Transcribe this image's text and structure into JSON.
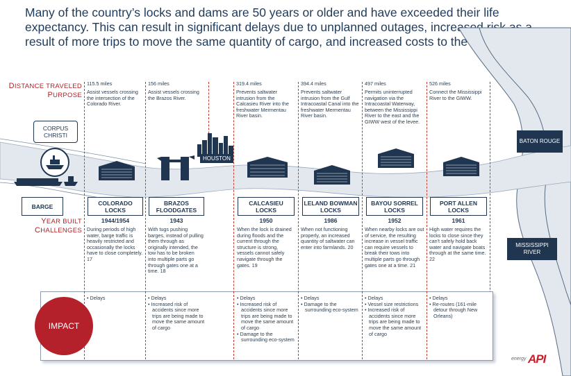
{
  "headline": "Many of the country’s locks and dams are 50 years or older and have exceeded their life expectancy. This can result in significant delays due to unplanned outages, increased risk as a result of more trips to move the same quantity of cargo, and increased costs to the end consumer.",
  "row_labels": {
    "distance_first": "D",
    "distance_rest": "ISTANCE TRAVELED",
    "purpose_first": "P",
    "purpose_rest": "URPOSE",
    "year_first": "Y",
    "year_rest": "EAR BUILT",
    "challenges_first": "C",
    "challenges_rest": "HALLENGES"
  },
  "cities": {
    "corpus_christi": "CORPUS CHRISTI",
    "houston": "HOUSTON",
    "baton_rouge": "BATON ROUGE",
    "mississippi_river": "MISSISSIPPI RIVER"
  },
  "barge_label": "BARGE",
  "impact_label": "IMPACT",
  "logo": {
    "prefix": "energy",
    "brand": "API",
    "color": "#c81e2b"
  },
  "colors": {
    "navy": "#1f3550",
    "red_label": "#b41e24",
    "impact_circle": "#b5212b",
    "water": "#e3e8ef"
  },
  "columns": [
    {
      "distance": "115.5 miles",
      "purpose": "Assist vessels crossing the intersection of the Colorado River.",
      "name": "COLORADO LOCKS",
      "year": "1944/1954",
      "challenge": "During periods of high water, barge traffic is heavily restricted and occasionally the locks have to close completely. 17",
      "impacts": [
        "• Delays"
      ]
    },
    {
      "distance": "156 miles",
      "purpose": "Assist vessels crossing the Brazos River.",
      "name": "BRAZOS FLOODGATES",
      "year": "1943",
      "challenge": "With tugs pushing barges, instead of pulling them through as originally intended, the tow has to be broken into multiple parts go through gates one at a time. 18",
      "impacts": [
        "• Delays",
        "• Increased risk of accidents since more trips are being made to move the same amount of cargo"
      ]
    },
    {
      "distance": "319.4 miles",
      "purpose": "Prevents saltwater intrusion from the Calcasieu River into the freshwater Mermentau River basin.",
      "name": "CALCASIEU LOCKS",
      "year": "1950",
      "challenge": "When the lock is drained during floods and the current through the structure is strong, vessels cannot safely navigate through the gates. 19",
      "impacts": [
        "• Delays",
        "• Increased risk of accidents since more trips are being made to move the same amount of cargo",
        "• Damage to the surrounding eco-system"
      ]
    },
    {
      "distance": "394.4 miles",
      "purpose": "Prevents saltwater intrusion from the Gulf Intracoastal Canal into the freshwater Mermentau River basin.",
      "name": "LELAND BOWMAN LOCKS",
      "year": "1986",
      "challenge": "When not functioning properly, an increased quantity of saltwater can enter into farmlands. 20",
      "impacts": [
        "• Delays",
        "• Damage to the surrounding eco-system"
      ]
    },
    {
      "distance": "497 miles",
      "purpose": "Permits uninterrupted navigation via the Intracoastal Waterway, between the Mississippi River to the east and the GIWW west of the levee.",
      "name": "BAYOU SORREL LOCKS",
      "year": "1952",
      "challenge": "When nearby locks are out of service, the resulting increase in vessel traffic can require vessels to break their tows into multiple parts go through gates one at a time. 21",
      "impacts": [
        "• Delays",
        "• Vessel size restrictions",
        "• Increased risk of accidents since more trips are being made to move the same amount of cargo"
      ]
    },
    {
      "distance": "526 miles",
      "purpose": "Connect the Mississippi River to the GIWW.",
      "name": "PORT ALLEN LOCKS",
      "year": "1961",
      "challenge": "High water requires the locks to close since they can't safely hold back water and navigate boats through at the same time. 22",
      "impacts": [
        "• Delays",
        "• Re-routes (161-mile detour through New Orleans)"
      ]
    }
  ]
}
